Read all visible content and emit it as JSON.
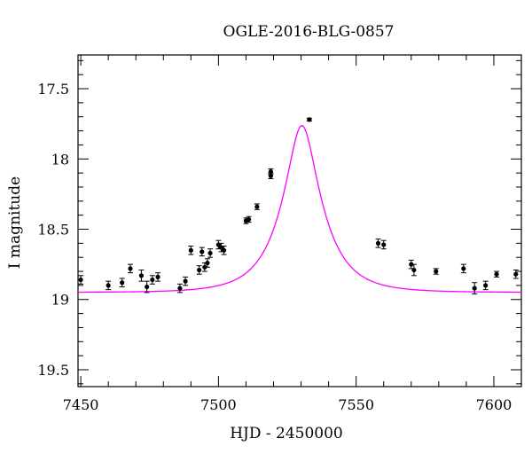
{
  "chart_data": {
    "type": "scatter",
    "title": "OGLE-2016-BLG-0857",
    "xlabel": "HJD - 2450000",
    "ylabel": "I magnitude",
    "xlim": [
      7449,
      7610
    ],
    "ylim": [
      19.62,
      17.26
    ],
    "y_inverted": true,
    "x_ticks": [
      7450,
      7500,
      7550,
      7600
    ],
    "x_tick_labels": [
      "7450",
      "7500",
      "7550",
      "7600"
    ],
    "y_ticks": [
      17.5,
      18,
      18.5,
      19,
      19.5
    ],
    "y_tick_labels": [
      "17.5",
      "18",
      "18.5",
      "19",
      "19.5"
    ],
    "grid": false,
    "colors": {
      "data": "#000000",
      "model": "#ff00ff",
      "axes": "#000000"
    },
    "series": [
      {
        "kind": "points-with-errorbars",
        "points": [
          {
            "x": 7450,
            "y": 18.86,
            "err": 0.03
          },
          {
            "x": 7460,
            "y": 18.9,
            "err": 0.03
          },
          {
            "x": 7465,
            "y": 18.88,
            "err": 0.03
          },
          {
            "x": 7468,
            "y": 18.78,
            "err": 0.03
          },
          {
            "x": 7472,
            "y": 18.83,
            "err": 0.04
          },
          {
            "x": 7474,
            "y": 18.91,
            "err": 0.04
          },
          {
            "x": 7476,
            "y": 18.86,
            "err": 0.03
          },
          {
            "x": 7478,
            "y": 18.84,
            "err": 0.03
          },
          {
            "x": 7486,
            "y": 18.92,
            "err": 0.03
          },
          {
            "x": 7488,
            "y": 18.87,
            "err": 0.03
          },
          {
            "x": 7490,
            "y": 18.65,
            "err": 0.03
          },
          {
            "x": 7493,
            "y": 18.79,
            "err": 0.03
          },
          {
            "x": 7494,
            "y": 18.66,
            "err": 0.03
          },
          {
            "x": 7495,
            "y": 18.77,
            "err": 0.03
          },
          {
            "x": 7496,
            "y": 18.74,
            "err": 0.03
          },
          {
            "x": 7497,
            "y": 18.67,
            "err": 0.03
          },
          {
            "x": 7500,
            "y": 18.61,
            "err": 0.03
          },
          {
            "x": 7501,
            "y": 18.63,
            "err": 0.03
          },
          {
            "x": 7502,
            "y": 18.65,
            "err": 0.03
          },
          {
            "x": 7510,
            "y": 18.44,
            "err": 0.02
          },
          {
            "x": 7511,
            "y": 18.43,
            "err": 0.02
          },
          {
            "x": 7514,
            "y": 18.34,
            "err": 0.02
          },
          {
            "x": 7519,
            "y": 18.09,
            "err": 0.02
          },
          {
            "x": 7519,
            "y": 18.12,
            "err": 0.02
          },
          {
            "x": 7533,
            "y": 17.72,
            "err": 0.01
          },
          {
            "x": 7558,
            "y": 18.6,
            "err": 0.03
          },
          {
            "x": 7560,
            "y": 18.61,
            "err": 0.03
          },
          {
            "x": 7570,
            "y": 18.75,
            "err": 0.03
          },
          {
            "x": 7571,
            "y": 18.79,
            "err": 0.04
          },
          {
            "x": 7579,
            "y": 18.8,
            "err": 0.02
          },
          {
            "x": 7589,
            "y": 18.78,
            "err": 0.03
          },
          {
            "x": 7593,
            "y": 18.92,
            "err": 0.04
          },
          {
            "x": 7597,
            "y": 18.9,
            "err": 0.03
          },
          {
            "x": 7601,
            "y": 18.82,
            "err": 0.02
          },
          {
            "x": 7608,
            "y": 18.82,
            "err": 0.03
          }
        ]
      },
      {
        "kind": "model-curve",
        "model": {
          "t0": 7530.3,
          "tE": 14.0,
          "u0": 0.35,
          "I_base": 18.95
        }
      }
    ]
  }
}
